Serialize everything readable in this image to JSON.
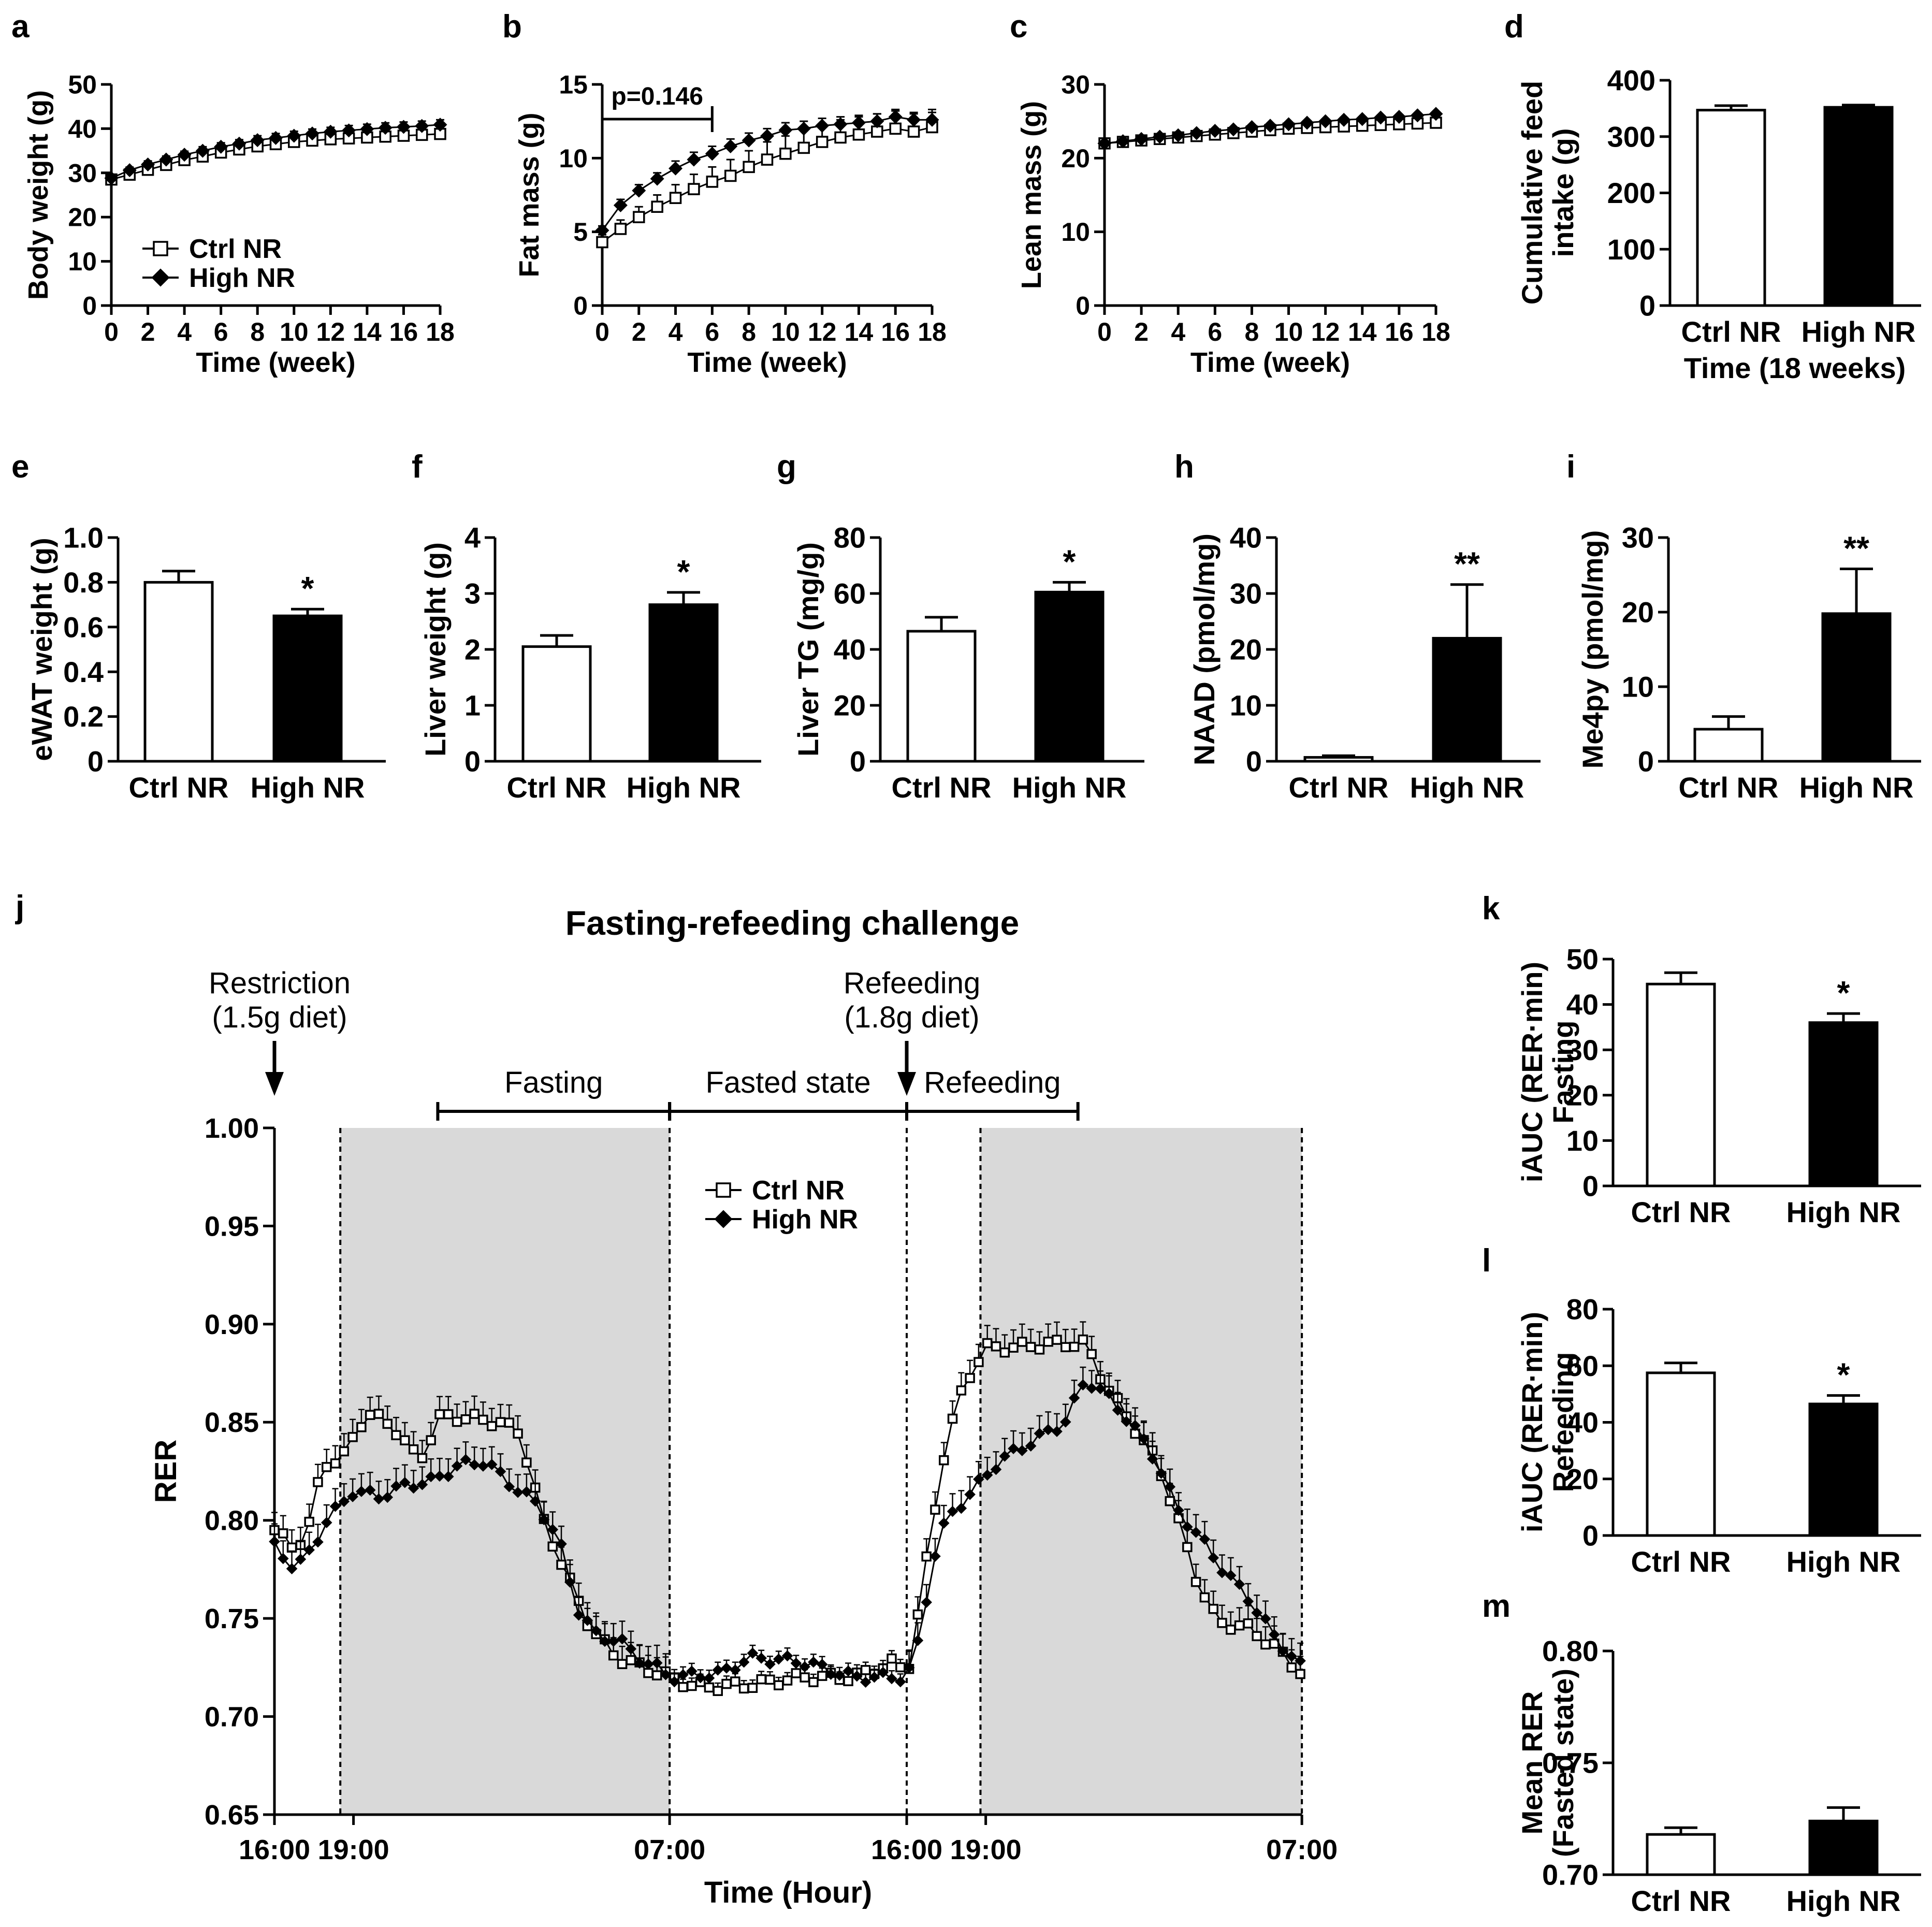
{
  "figure": {
    "groups": [
      "Ctrl NR",
      "High NR"
    ],
    "legend": [
      "Ctrl NR",
      "High NR"
    ]
  },
  "chart_data": [
    {
      "id": "a",
      "type": "line",
      "panel_letter": "a",
      "xlabel": "Time (week)",
      "ylabel": "Body weight (g)",
      "xlim": [
        0,
        18
      ],
      "ylim": [
        0,
        50
      ],
      "xticks": [
        "0",
        "2",
        "4",
        "6",
        "8",
        "10",
        "12",
        "14",
        "16",
        "18"
      ],
      "yticks": [
        "0",
        "10",
        "20",
        "30",
        "40",
        "50"
      ],
      "legend": [
        "Ctrl NR",
        "High NR"
      ],
      "x": [
        0,
        1,
        2,
        3,
        4,
        5,
        6,
        7,
        8,
        9,
        10,
        11,
        12,
        13,
        14,
        15,
        16,
        17,
        18
      ],
      "series": [
        {
          "name": "Ctrl NR",
          "marker": "open-square",
          "values": [
            28.5,
            29.6,
            30.7,
            31.8,
            32.9,
            33.7,
            34.6,
            35.3,
            36.0,
            36.5,
            37.0,
            37.3,
            37.6,
            37.8,
            38.0,
            38.2,
            38.4,
            38.6,
            38.8
          ],
          "err": [
            0.8,
            0.8,
            0.8,
            0.9,
            0.9,
            0.9,
            1.0,
            1.0,
            1.0,
            1.1,
            1.1,
            1.1,
            1.1,
            1.2,
            1.2,
            1.2,
            1.2,
            1.2,
            1.2
          ]
        },
        {
          "name": "High NR",
          "marker": "filled-diamond",
          "values": [
            28.8,
            30.6,
            31.9,
            33.0,
            34.1,
            35.0,
            35.9,
            36.6,
            37.4,
            37.9,
            38.4,
            38.9,
            39.3,
            39.6,
            39.9,
            40.2,
            40.4,
            40.6,
            40.9
          ],
          "err": [
            0.7,
            0.7,
            0.8,
            0.8,
            0.8,
            0.9,
            0.9,
            0.9,
            1.0,
            1.0,
            1.0,
            1.0,
            1.0,
            1.1,
            1.1,
            1.1,
            1.1,
            1.1,
            1.1
          ]
        }
      ]
    },
    {
      "id": "b",
      "type": "line",
      "panel_letter": "b",
      "xlabel": "Time (week)",
      "ylabel": "Fat mass (g)",
      "xlim": [
        0,
        18
      ],
      "ylim": [
        0,
        15
      ],
      "xticks": [
        "0",
        "2",
        "4",
        "6",
        "8",
        "10",
        "12",
        "14",
        "16",
        "18"
      ],
      "yticks": [
        "0",
        "5",
        "10",
        "15"
      ],
      "annotation": {
        "text": "p=0.146",
        "from_x": 0,
        "to_x": 6
      },
      "x": [
        0,
        1,
        2,
        3,
        4,
        5,
        6,
        7,
        8,
        9,
        10,
        11,
        12,
        13,
        14,
        15,
        16,
        17,
        18
      ],
      "series": [
        {
          "name": "Ctrl NR",
          "marker": "open-square",
          "values": [
            4.3,
            5.2,
            6.0,
            6.7,
            7.3,
            7.9,
            8.4,
            8.8,
            9.4,
            9.9,
            10.3,
            10.7,
            11.1,
            11.4,
            11.6,
            11.8,
            12.0,
            11.8,
            12.1
          ],
          "err": [
            0.5,
            0.6,
            0.7,
            0.8,
            0.9,
            1.0,
            1.0,
            1.1,
            1.1,
            1.2,
            1.2,
            1.2,
            1.2,
            1.2,
            1.2,
            1.2,
            1.2,
            1.2,
            1.2
          ]
        },
        {
          "name": "High NR",
          "marker": "filled-diamond",
          "values": [
            5.1,
            6.8,
            7.8,
            8.6,
            9.3,
            9.9,
            10.3,
            10.8,
            11.2,
            11.5,
            11.9,
            12.0,
            12.2,
            12.3,
            12.4,
            12.5,
            12.8,
            12.6,
            12.6
          ],
          "err": [
            0.3,
            0.4,
            0.4,
            0.4,
            0.5,
            0.5,
            0.5,
            0.5,
            0.5,
            0.5,
            0.5,
            0.5,
            0.5,
            0.5,
            0.5,
            0.5,
            0.5,
            0.5,
            0.5
          ]
        }
      ]
    },
    {
      "id": "c",
      "type": "line",
      "panel_letter": "c",
      "xlabel": "Time (week)",
      "ylabel": "Lean mass (g)",
      "xlim": [
        0,
        18
      ],
      "ylim": [
        0,
        30
      ],
      "xticks": [
        "0",
        "2",
        "4",
        "6",
        "8",
        "10",
        "12",
        "14",
        "16",
        "18"
      ],
      "yticks": [
        "0",
        "10",
        "20",
        "30"
      ],
      "x": [
        0,
        1,
        2,
        3,
        4,
        5,
        6,
        7,
        8,
        9,
        10,
        11,
        12,
        13,
        14,
        15,
        16,
        17,
        18
      ],
      "series": [
        {
          "name": "Ctrl NR",
          "marker": "open-square",
          "values": [
            22.0,
            22.2,
            22.4,
            22.6,
            22.8,
            23.0,
            23.2,
            23.4,
            23.6,
            23.8,
            24.0,
            24.1,
            24.2,
            24.3,
            24.4,
            24.5,
            24.6,
            24.7,
            24.8
          ],
          "err": [
            0.3,
            0.3,
            0.3,
            0.3,
            0.3,
            0.3,
            0.3,
            0.3,
            0.3,
            0.3,
            0.3,
            0.3,
            0.3,
            0.3,
            0.3,
            0.3,
            0.3,
            0.3,
            0.3
          ]
        },
        {
          "name": "High NR",
          "marker": "filled-diamond",
          "values": [
            22.0,
            22.3,
            22.6,
            22.9,
            23.1,
            23.4,
            23.7,
            23.9,
            24.2,
            24.4,
            24.6,
            24.8,
            25.0,
            25.2,
            25.3,
            25.5,
            25.6,
            25.8,
            26.0
          ],
          "err": [
            0.3,
            0.3,
            0.3,
            0.3,
            0.3,
            0.3,
            0.3,
            0.3,
            0.3,
            0.3,
            0.3,
            0.3,
            0.3,
            0.3,
            0.3,
            0.3,
            0.3,
            0.3,
            0.3
          ]
        }
      ]
    },
    {
      "id": "d",
      "type": "bar",
      "panel_letter": "d",
      "ylabel": [
        "Cumulative feed",
        "intake (g)"
      ],
      "xlabel": "Time (18 weeks)",
      "categories": [
        "Ctrl NR",
        "High NR"
      ],
      "values": [
        347,
        352
      ],
      "err": [
        8,
        4
      ],
      "ylim": [
        0,
        400
      ],
      "yticks": [
        "0",
        "100",
        "200",
        "300",
        "400"
      ],
      "sig": [
        "",
        ""
      ]
    },
    {
      "id": "e",
      "type": "bar",
      "panel_letter": "e",
      "ylabel": "eWAT weight (g)",
      "categories": [
        "Ctrl NR",
        "High NR"
      ],
      "values": [
        0.8,
        0.65
      ],
      "err": [
        0.05,
        0.03
      ],
      "ylim": [
        0,
        1.0
      ],
      "yticks": [
        "0",
        "0.2",
        "0.4",
        "0.6",
        "0.8",
        "1.0"
      ],
      "sig": [
        "",
        "*"
      ]
    },
    {
      "id": "f",
      "type": "bar",
      "panel_letter": "f",
      "ylabel": "Liver weight (g)",
      "categories": [
        "Ctrl NR",
        "High NR"
      ],
      "values": [
        2.05,
        2.8
      ],
      "err": [
        0.2,
        0.22
      ],
      "ylim": [
        0,
        4
      ],
      "yticks": [
        "0",
        "1",
        "2",
        "3",
        "4"
      ],
      "sig": [
        "",
        "*"
      ]
    },
    {
      "id": "g",
      "type": "bar",
      "panel_letter": "g",
      "ylabel": "Liver TG (mg/g)",
      "categories": [
        "Ctrl NR",
        "High NR"
      ],
      "values": [
        46.5,
        60.5
      ],
      "err": [
        5,
        3.5
      ],
      "ylim": [
        0,
        80
      ],
      "yticks": [
        "0",
        "20",
        "40",
        "60",
        "80"
      ],
      "sig": [
        "",
        "*"
      ]
    },
    {
      "id": "h",
      "type": "bar",
      "panel_letter": "h",
      "ylabel": "NAAD (pmol/mg)",
      "categories": [
        "Ctrl NR",
        "High NR"
      ],
      "values": [
        0.7,
        22
      ],
      "err": [
        0.3,
        9.6
      ],
      "ylim": [
        0,
        40
      ],
      "yticks": [
        "0",
        "10",
        "20",
        "30",
        "40"
      ],
      "sig": [
        "",
        "**"
      ]
    },
    {
      "id": "i",
      "type": "bar",
      "panel_letter": "i",
      "ylabel": "Me4py (pmol/mg)",
      "categories": [
        "Ctrl NR",
        "High NR"
      ],
      "values": [
        4.3,
        19.8
      ],
      "err": [
        1.7,
        6
      ],
      "ylim": [
        0,
        30
      ],
      "yticks": [
        "0",
        "10",
        "20",
        "30"
      ],
      "sig": [
        "",
        "**"
      ]
    },
    {
      "id": "j",
      "type": "line",
      "panel_letter": "j",
      "title": "Fasting-refeeding challenge",
      "xlabel": "Time (Hour)",
      "ylabel": "RER",
      "ylim": [
        0.65,
        1.0
      ],
      "yticks": [
        "0.65",
        "0.70",
        "0.75",
        "0.80",
        "0.85",
        "0.90",
        "0.95",
        "1.00"
      ],
      "xlim_hours": [
        0,
        39
      ],
      "xticks": [
        {
          "h": 0,
          "label": "16:00"
        },
        {
          "h": 3,
          "label": "19:00"
        },
        {
          "h": 15,
          "label": "07:00"
        },
        {
          "h": 24,
          "label": "16:00"
        },
        {
          "h": 27,
          "label": "19:00"
        },
        {
          "h": 39,
          "label": "07:00"
        }
      ],
      "dark_periods_hours": [
        [
          2.5,
          15
        ],
        [
          26.8,
          39
        ]
      ],
      "dashed_lines_hours": [
        2.5,
        15,
        24,
        26.8,
        39
      ],
      "phases": [
        {
          "label": "Fasting",
          "from_h": 6.2,
          "to_h": 15
        },
        {
          "label": "Fasted state",
          "from_h": 15,
          "to_h": 24
        },
        {
          "label": "Refeeding",
          "from_h": 24,
          "to_h": 30.5
        }
      ],
      "arrows": [
        {
          "h": 0,
          "lines": [
            "Restriction",
            "(1.5g diet)"
          ]
        },
        {
          "h": 24,
          "lines": [
            "Refeeding",
            "(1.8g diet)"
          ]
        }
      ],
      "series": [
        {
          "name": "Ctrl NR",
          "marker": "open-square",
          "keyframes": [
            [
              0,
              0.795
            ],
            [
              0.8,
              0.785
            ],
            [
              1.4,
              0.8
            ],
            [
              1.8,
              0.828
            ],
            [
              2.6,
              0.832
            ],
            [
              3.5,
              0.855
            ],
            [
              4.5,
              0.848
            ],
            [
              5.5,
              0.83
            ],
            [
              6.3,
              0.853
            ],
            [
              7.5,
              0.852
            ],
            [
              8.5,
              0.85
            ],
            [
              9.3,
              0.845
            ],
            [
              10.2,
              0.8
            ],
            [
              11.0,
              0.775
            ],
            [
              12.0,
              0.745
            ],
            [
              13.0,
              0.73
            ],
            [
              14.0,
              0.725
            ],
            [
              15,
              0.72
            ],
            [
              16,
              0.715
            ],
            [
              18,
              0.716
            ],
            [
              20,
              0.72
            ],
            [
              22,
              0.72
            ],
            [
              23.6,
              0.728
            ],
            [
              24.0,
              0.72
            ],
            [
              24.4,
              0.75
            ],
            [
              25.0,
              0.8
            ],
            [
              25.5,
              0.84
            ],
            [
              26.2,
              0.87
            ],
            [
              27.0,
              0.888
            ],
            [
              28.0,
              0.888
            ],
            [
              29.5,
              0.89
            ],
            [
              30.8,
              0.89
            ],
            [
              31.5,
              0.87
            ],
            [
              32.5,
              0.85
            ],
            [
              33.5,
              0.83
            ],
            [
              34.3,
              0.8
            ],
            [
              35.0,
              0.77
            ],
            [
              35.8,
              0.748
            ],
            [
              37.0,
              0.745
            ],
            [
              38.0,
              0.735
            ],
            [
              39.0,
              0.722
            ]
          ]
        },
        {
          "name": "High NR",
          "marker": "filled-diamond",
          "keyframes": [
            [
              0,
              0.787
            ],
            [
              0.8,
              0.775
            ],
            [
              1.4,
              0.785
            ],
            [
              2.0,
              0.8
            ],
            [
              3.0,
              0.815
            ],
            [
              4.0,
              0.812
            ],
            [
              5.0,
              0.818
            ],
            [
              6.0,
              0.82
            ],
            [
              7.0,
              0.828
            ],
            [
              8.0,
              0.83
            ],
            [
              9.0,
              0.818
            ],
            [
              10.0,
              0.808
            ],
            [
              10.8,
              0.79
            ],
            [
              11.5,
              0.755
            ],
            [
              12.3,
              0.74
            ],
            [
              13.0,
              0.74
            ],
            [
              13.8,
              0.73
            ],
            [
              14.5,
              0.725
            ],
            [
              15,
              0.72
            ],
            [
              17,
              0.722
            ],
            [
              18,
              0.73
            ],
            [
              20,
              0.728
            ],
            [
              22,
              0.72
            ],
            [
              24,
              0.72
            ],
            [
              24.5,
              0.74
            ],
            [
              25.0,
              0.78
            ],
            [
              25.5,
              0.8
            ],
            [
              26.5,
              0.815
            ],
            [
              27.5,
              0.83
            ],
            [
              28.5,
              0.838
            ],
            [
              30.0,
              0.85
            ],
            [
              30.8,
              0.872
            ],
            [
              31.5,
              0.865
            ],
            [
              32.5,
              0.85
            ],
            [
              33.5,
              0.83
            ],
            [
              34.3,
              0.805
            ],
            [
              35.2,
              0.79
            ],
            [
              36.0,
              0.775
            ],
            [
              37.0,
              0.76
            ],
            [
              38.0,
              0.74
            ],
            [
              39.0,
              0.725
            ]
          ]
        }
      ]
    },
    {
      "id": "k",
      "type": "bar",
      "panel_letter": "k",
      "ylabel": [
        "iAUC (RER·min)",
        "Fasting"
      ],
      "categories": [
        "Ctrl NR",
        "High NR"
      ],
      "values": [
        44.5,
        36
      ],
      "err": [
        2.5,
        2
      ],
      "ylim": [
        0,
        50
      ],
      "yticks": [
        "0",
        "10",
        "20",
        "30",
        "40",
        "50"
      ],
      "sig": [
        "",
        "*"
      ]
    },
    {
      "id": "l",
      "type": "bar",
      "panel_letter": "l",
      "ylabel": [
        "iAUC (RER·min)",
        "Refeeding"
      ],
      "categories": [
        "Ctrl NR",
        "High NR"
      ],
      "values": [
        57.5,
        46.5
      ],
      "err": [
        3.5,
        3
      ],
      "ylim": [
        0,
        80
      ],
      "yticks": [
        "0",
        "20",
        "40",
        "60",
        "80"
      ],
      "sig": [
        "",
        "*"
      ]
    },
    {
      "id": "m",
      "type": "bar",
      "panel_letter": "m",
      "ylabel": [
        "Mean RER",
        "(Fasted state)"
      ],
      "categories": [
        "Ctrl NR",
        "High NR"
      ],
      "values": [
        0.718,
        0.724
      ],
      "err": [
        0.003,
        0.006
      ],
      "ylim": [
        0.7,
        0.8
      ],
      "yticks": [
        "0.70",
        "0.75",
        "0.80"
      ],
      "sig": [
        "",
        ""
      ]
    }
  ]
}
